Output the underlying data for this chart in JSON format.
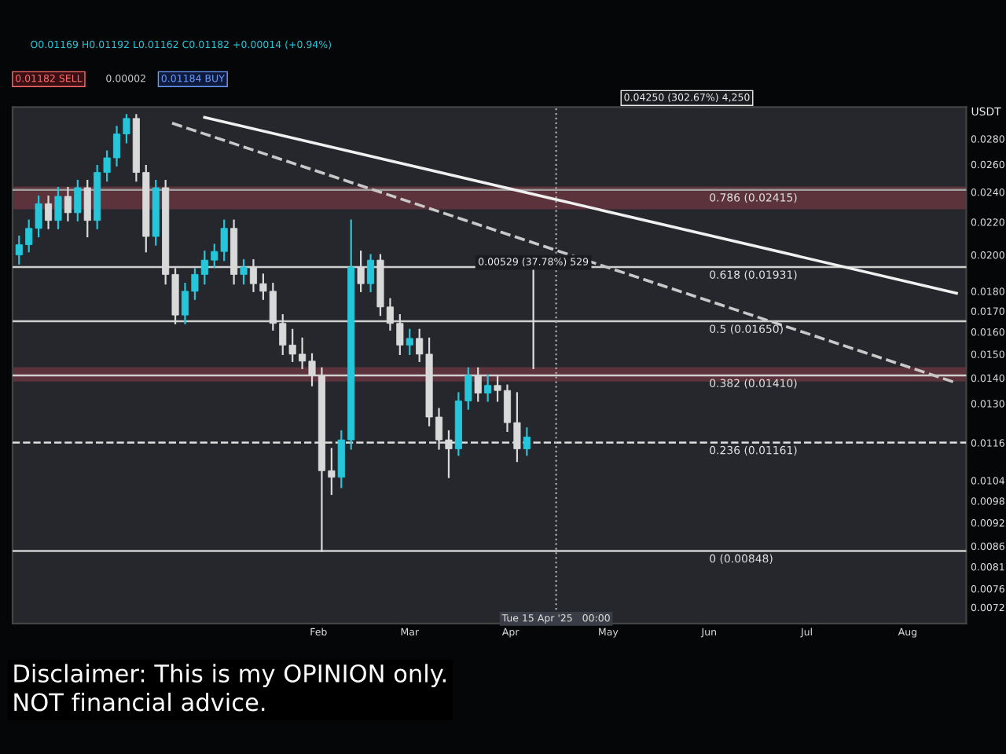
{
  "chart_data": {
    "type": "candlestick",
    "ylabel": "USDT",
    "log": "y",
    "ylim": [
      0.00687,
      0.0307
    ],
    "yticks": [
      {
        "value": 0.028,
        "label": "0.0280"
      },
      {
        "value": 0.026,
        "label": "0.0260"
      },
      {
        "value": 0.024,
        "label": "0.0240"
      },
      {
        "value": 0.022,
        "label": "0.0220"
      },
      {
        "value": 0.02,
        "label": "0.0200"
      },
      {
        "value": 0.018,
        "label": "0.0180"
      },
      {
        "value": 0.017,
        "label": "0.0170"
      },
      {
        "value": 0.016,
        "label": "0.0160"
      },
      {
        "value": 0.015,
        "label": "0.0150"
      },
      {
        "value": 0.014,
        "label": "0.0140"
      },
      {
        "value": 0.013,
        "label": "0.0130"
      },
      {
        "value": 0.0116,
        "label": "0.0116"
      },
      {
        "value": 0.0104,
        "label": "0.0104"
      },
      {
        "value": 0.0098,
        "label": "0.0098"
      },
      {
        "value": 0.0092,
        "label": "0.0092"
      },
      {
        "value": 0.0086,
        "label": "0.0086"
      },
      {
        "value": 0.0081,
        "label": "0.0081"
      },
      {
        "value": 0.0076,
        "label": "0.0076"
      },
      {
        "value": 0.0072,
        "label": "0.0072"
      }
    ],
    "xlim": [
      "2024-10-30",
      "2025-08-19"
    ],
    "xticks": [
      {
        "value": "2025-02-01",
        "label": "Feb"
      },
      {
        "value": "2025-03-01",
        "label": "Mar"
      },
      {
        "value": "2025-04-01",
        "label": "Apr"
      },
      {
        "value": "2025-05-01",
        "label": "May"
      },
      {
        "value": "2025-06-01",
        "label": "Jun"
      },
      {
        "value": "2025-07-01",
        "label": "Jul"
      },
      {
        "value": "2025-08-01",
        "label": "Aug"
      }
    ],
    "grid": false,
    "series": [
      {
        "type": "candlestick",
        "color": "#26c6da",
        "x": [
          "2024-11-01",
          "2024-11-04",
          "2024-11-07",
          "2024-11-13",
          "2024-11-19",
          "2024-11-25",
          "2024-11-28",
          "2024-12-01",
          "2024-12-04",
          "2024-12-13",
          "2024-12-22",
          "2024-12-25",
          "2024-12-28",
          "2024-12-31",
          "2025-01-03",
          "2025-01-09",
          "2025-02-08",
          "2025-02-11",
          "2025-02-17",
          "2025-03-01",
          "2025-03-16",
          "2025-03-19",
          "2025-03-25",
          "2025-04-06"
        ],
        "ohlc": [
          [
            0.02,
            0.0211,
            0.0195,
            0.0206
          ],
          [
            0.0206,
            0.0221,
            0.0202,
            0.0216
          ],
          [
            0.0216,
            0.0237,
            0.0211,
            0.0232
          ],
          [
            0.0221,
            0.0243,
            0.0216,
            0.0237
          ],
          [
            0.0226,
            0.0248,
            0.0221,
            0.0243
          ],
          [
            0.0221,
            0.0259,
            0.0216,
            0.0254
          ],
          [
            0.0254,
            0.027,
            0.0248,
            0.0265
          ],
          [
            0.0265,
            0.029,
            0.0259,
            0.0284
          ],
          [
            0.0284,
            0.03,
            0.0277,
            0.0297
          ],
          [
            0.0211,
            0.0248,
            0.0206,
            0.0243
          ],
          [
            0.0168,
            0.0184,
            0.0164,
            0.018
          ],
          [
            0.018,
            0.0192,
            0.0176,
            0.0189
          ],
          [
            0.0189,
            0.0202,
            0.0184,
            0.0197
          ],
          [
            0.0197,
            0.0206,
            0.0193,
            0.0202
          ],
          [
            0.0202,
            0.0221,
            0.0197,
            0.0216
          ],
          [
            0.0189,
            0.0197,
            0.0184,
            0.0193
          ],
          [
            0.0105,
            0.012,
            0.0102,
            0.0117
          ],
          [
            0.0117,
            0.0221,
            0.0114,
            0.0193
          ],
          [
            0.0184,
            0.02,
            0.018,
            0.0197
          ],
          [
            0.0154,
            0.0161,
            0.015,
            0.0157
          ],
          [
            0.0114,
            0.0134,
            0.0112,
            0.0131
          ],
          [
            0.0131,
            0.0144,
            0.0128,
            0.0141
          ],
          [
            0.0134,
            0.0141,
            0.0131,
            0.0137
          ],
          [
            0.0114,
            0.0121,
            0.0112,
            0.0118
          ]
        ]
      },
      {
        "type": "candlestick",
        "color": "#d9d9d9",
        "x": [
          "2024-11-10",
          "2024-11-16",
          "2024-11-22",
          "2024-12-07",
          "2024-12-10",
          "2024-12-16",
          "2024-12-19",
          "2025-01-06",
          "2025-01-12",
          "2025-01-15",
          "2025-01-18",
          "2025-01-21",
          "2025-01-24",
          "2025-01-27",
          "2025-01-30",
          "2025-02-02",
          "2025-02-05",
          "2025-02-14",
          "2025-02-20",
          "2025-02-23",
          "2025-02-26",
          "2025-03-04",
          "2025-03-07",
          "2025-03-10",
          "2025-03-13",
          "2025-03-22",
          "2025-03-28",
          "2025-03-31",
          "2025-04-03"
        ],
        "ohlc": [
          [
            0.0232,
            0.0237,
            0.0216,
            0.0221
          ],
          [
            0.0237,
            0.0243,
            0.0221,
            0.0226
          ],
          [
            0.0243,
            0.0248,
            0.0211,
            0.0221
          ],
          [
            0.0297,
            0.03,
            0.0248,
            0.0254
          ],
          [
            0.0254,
            0.0259,
            0.0202,
            0.0211
          ],
          [
            0.0243,
            0.0248,
            0.0184,
            0.0189
          ],
          [
            0.0189,
            0.0192,
            0.0164,
            0.0168
          ],
          [
            0.0216,
            0.0221,
            0.0184,
            0.0189
          ],
          [
            0.0193,
            0.0197,
            0.018,
            0.0184
          ],
          [
            0.0184,
            0.0189,
            0.0176,
            0.018
          ],
          [
            0.018,
            0.0184,
            0.0161,
            0.0164
          ],
          [
            0.0164,
            0.0168,
            0.015,
            0.0154
          ],
          [
            0.0154,
            0.0161,
            0.0147,
            0.015
          ],
          [
            0.015,
            0.0157,
            0.0144,
            0.0147
          ],
          [
            0.0147,
            0.015,
            0.0137,
            0.0141
          ],
          [
            0.0141,
            0.0144,
            0.00848,
            0.0107
          ],
          [
            0.0107,
            0.0114,
            0.01,
            0.0105
          ],
          [
            0.0193,
            0.0202,
            0.018,
            0.0184
          ],
          [
            0.0197,
            0.02,
            0.0168,
            0.0172
          ],
          [
            0.0172,
            0.0176,
            0.0161,
            0.0164
          ],
          [
            0.0164,
            0.0168,
            0.015,
            0.0154
          ],
          [
            0.0157,
            0.0161,
            0.0147,
            0.015
          ],
          [
            0.015,
            0.0157,
            0.0122,
            0.0125
          ],
          [
            0.0125,
            0.0128,
            0.0114,
            0.0117
          ],
          [
            0.0117,
            0.012,
            0.0105,
            0.0114
          ],
          [
            0.0141,
            0.0144,
            0.0131,
            0.0134
          ],
          [
            0.0137,
            0.0141,
            0.0131,
            0.0135
          ],
          [
            0.0135,
            0.0137,
            0.012,
            0.0123
          ],
          [
            0.0123,
            0.0134,
            0.011,
            0.0114
          ]
        ]
      },
      {
        "type": "line",
        "color": "#f0f0f0",
        "line_style": "solid",
        "x": [
          "2024-12-28",
          "2025-08-16"
        ],
        "values": [
          0.0298,
          0.0179
        ]
      },
      {
        "type": "line",
        "color": "#c8c8c8",
        "line_style": "dashed",
        "x": [
          "2024-12-18",
          "2025-08-16"
        ],
        "values": [
          0.0293,
          0.0138
        ]
      }
    ],
    "ref_lines": [
      {
        "axis": "y",
        "value": 0.02415,
        "label": "0.786 (0.02415)",
        "color": "#9e9e9e",
        "line_style": "solid"
      },
      {
        "axis": "y",
        "value": 0.01931,
        "label": "0.618 (0.01931)",
        "color": "#cfcfcf",
        "line_style": "solid"
      },
      {
        "axis": "y",
        "value": 0.0165,
        "label": "0.5 (0.01650)",
        "color": "#cfcfcf",
        "line_style": "solid"
      },
      {
        "axis": "y",
        "value": 0.0141,
        "label": "0.382 (0.01410)",
        "color": "#cfcfcf",
        "line_style": "solid"
      },
      {
        "axis": "y",
        "value": 0.01161,
        "label": "0.236 (0.01161)",
        "color": "#e0e0e0",
        "line_style": "dashed"
      },
      {
        "axis": "y",
        "value": 0.00848,
        "label": "0 (0.00848)",
        "color": "#cfcfcf",
        "line_style": "solid"
      },
      {
        "axis": "x",
        "value": "2025-04-15",
        "label": "Tue 15 Apr '25   00:00",
        "color": "#aaaaaa",
        "line_style": "dotted"
      }
    ],
    "bands": [
      {
        "axis": "y",
        "from": 0.0229,
        "to": 0.0243,
        "color": "#a0404f"
      },
      {
        "axis": "y",
        "from": 0.0139,
        "to": 0.0144,
        "color": "#a0404f"
      }
    ],
    "annotations": [
      "O0.01169 H0.01192 L0.01162 C0.01182 +0.00014 (+0.94%)",
      "0.01182 SELL",
      "0.00002",
      "0.01184 BUY",
      {
        "text": "0.00529 (37.78%) 529",
        "x": "2025-04-08",
        "y": 0.0193
      },
      "0.04250 (302.67%) 4,250",
      "Disclaimer: This is my OPINION only.\nNOT financial advice."
    ]
  }
}
